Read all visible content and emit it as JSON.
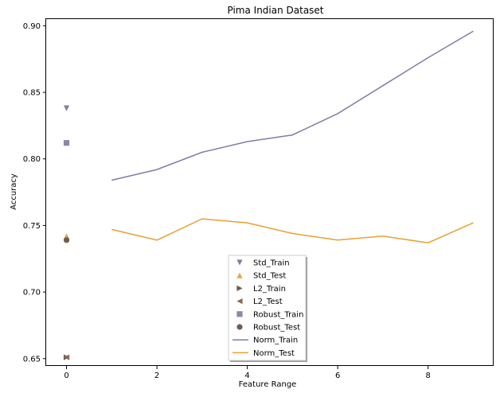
{
  "chart_data": {
    "type": "line",
    "title": "Pima Indian Dataset",
    "xlabel": "Feature Range",
    "ylabel": "Accuracy",
    "xlim": [
      -0.45,
      9.45
    ],
    "ylim": [
      0.6445,
      0.905
    ],
    "xticks": [
      0,
      2,
      4,
      6,
      8
    ],
    "xtick_labels": [
      "0",
      "2",
      "4",
      "6",
      "8"
    ],
    "yticks": [
      0.65,
      0.7,
      0.75,
      0.8,
      0.85,
      0.9
    ],
    "ytick_labels": [
      "0.65",
      "0.70",
      "0.75",
      "0.80",
      "0.85",
      "0.90"
    ],
    "grid": false,
    "legend_position": "lower-center",
    "series": [
      {
        "name": "Std_Train",
        "kind": "scatter",
        "marker": "triangle-down",
        "color": "#7f7fa3",
        "x": [
          0
        ],
        "y": [
          0.838
        ]
      },
      {
        "name": "Std_Test",
        "kind": "scatter",
        "marker": "triangle-up",
        "color": "#e8a445",
        "x": [
          0
        ],
        "y": [
          0.742
        ]
      },
      {
        "name": "L2_Train",
        "kind": "scatter",
        "marker": "triangle-right",
        "color": "#6b5a55",
        "x": [
          0
        ],
        "y": [
          0.651
        ]
      },
      {
        "name": "L2_Test",
        "kind": "scatter",
        "marker": "triangle-left",
        "color": "#8a6a55",
        "x": [
          0
        ],
        "y": [
          0.651
        ]
      },
      {
        "name": "Robust_Train",
        "kind": "scatter",
        "marker": "square",
        "color": "#8888aa",
        "x": [
          0
        ],
        "y": [
          0.812
        ]
      },
      {
        "name": "Robust_Test",
        "kind": "scatter",
        "marker": "circle",
        "color": "#6e5e55",
        "x": [
          0
        ],
        "y": [
          0.739
        ]
      },
      {
        "name": "Norm_Train",
        "kind": "line",
        "color": "#7e7ea6",
        "x": [
          1,
          2,
          3,
          4,
          5,
          6,
          7,
          8,
          9
        ],
        "y": [
          0.784,
          0.792,
          0.805,
          0.813,
          0.818,
          0.834,
          0.855,
          0.876,
          0.896
        ]
      },
      {
        "name": "Norm_Test",
        "kind": "line",
        "color": "#e8a030",
        "x": [
          1,
          2,
          3,
          4,
          5,
          6,
          7,
          8,
          9
        ],
        "y": [
          0.747,
          0.739,
          0.755,
          0.752,
          0.744,
          0.739,
          0.742,
          0.737,
          0.752
        ]
      }
    ]
  }
}
